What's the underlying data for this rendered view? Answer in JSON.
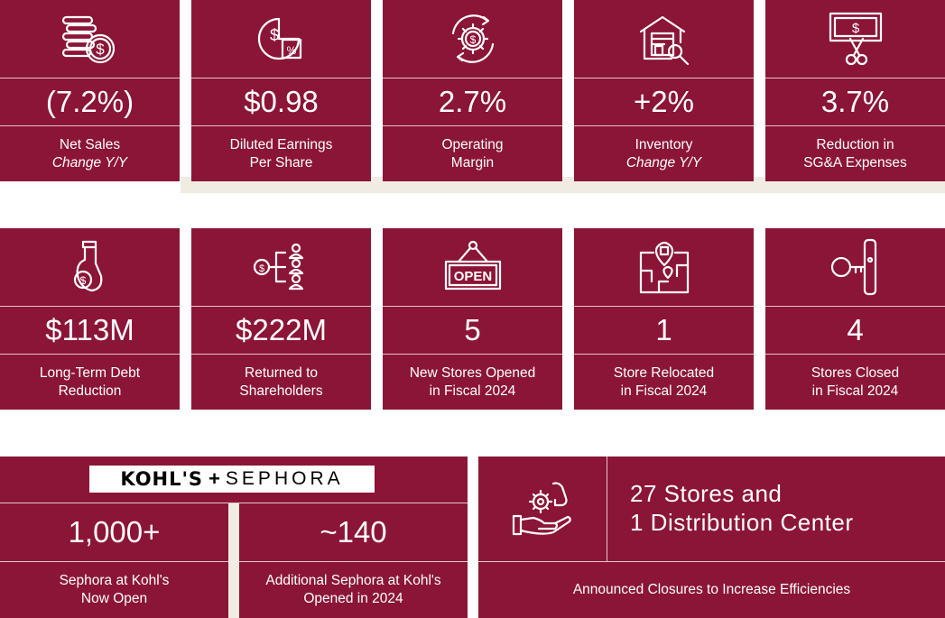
{
  "row1": [
    {
      "icon": "coins-dollar-icon",
      "value": "(7.2%)",
      "line1": "Net Sales",
      "line2": "Change Y/Y",
      "italic2": true
    },
    {
      "icon": "pie-dollar-percent-icon",
      "value": "$0.98",
      "line1": "Diluted Earnings",
      "line2": "Per Share",
      "italic2": false
    },
    {
      "icon": "gear-dollar-cycle-icon",
      "value": "2.7%",
      "line1": "Operating",
      "line2": "Margin",
      "italic2": false
    },
    {
      "icon": "warehouse-search-icon",
      "value": "+2%",
      "line1": "Inventory",
      "line2": "Change Y/Y",
      "italic2": true
    },
    {
      "icon": "cut-money-icon",
      "value": "3.7%",
      "line1": "Reduction in",
      "line2": "SG&A Expenses",
      "italic2": false
    }
  ],
  "row2": [
    {
      "icon": "hand-coin-icon",
      "value": "$113M",
      "line1": "Long-Term Debt",
      "line2": "Reduction",
      "italic2": false
    },
    {
      "icon": "dollar-to-people-icon",
      "value": "$222M",
      "line1": "Returned to",
      "line2": "Shareholders",
      "italic2": false
    },
    {
      "icon": "open-sign-icon",
      "value": "5",
      "line1": "New Stores Opened",
      "line2": "in Fiscal 2024",
      "italic2": false,
      "sign_text": "OPEN"
    },
    {
      "icon": "map-pin-icon",
      "value": "1",
      "line1": "Store Relocated",
      "line2": "in Fiscal 2024",
      "italic2": false
    },
    {
      "icon": "key-lock-icon",
      "value": "4",
      "line1": "Stores Closed",
      "line2": "in Fiscal 2024",
      "italic2": false
    }
  ],
  "sephora": {
    "logo_kohls": "KOHL'S",
    "logo_plus": "+",
    "logo_sephora": "SEPHORA",
    "left_value": "1,000+",
    "left_line1": "Sephora at Kohl's",
    "left_line2": "Now Open",
    "right_value": "~140",
    "right_line1": "Additional Sephora at Kohl's",
    "right_line2": "Opened in 2024"
  },
  "closures": {
    "icon": "hand-gear-efficiency-icon",
    "line1": "27 Stores and",
    "line2": "1 Distribution Center",
    "caption": "Announced Closures to Increase Efficiencies"
  },
  "colors": {
    "tile": "#8b1537",
    "shade": "#f1ece3",
    "text": "#ffffff"
  }
}
